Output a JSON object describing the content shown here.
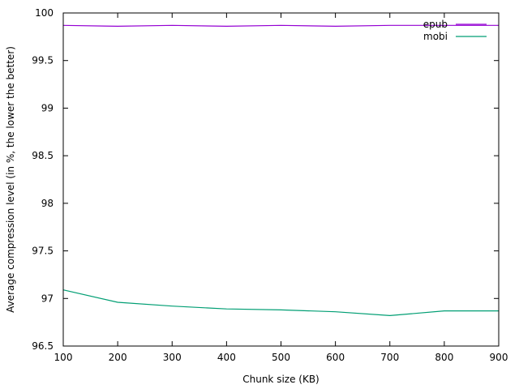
{
  "chart_data": {
    "type": "line",
    "title": "",
    "xlabel": "Chunk size (KB)",
    "ylabel": "Average compression level (in %, the lower the better)",
    "xlim": [
      100,
      900
    ],
    "ylim": [
      96.5,
      100
    ],
    "x_ticks": [
      100,
      200,
      300,
      400,
      500,
      600,
      700,
      800,
      900
    ],
    "y_ticks": [
      "96.5",
      "97",
      "97.5",
      "98",
      "98.5",
      "99",
      "99.5",
      "100"
    ],
    "grid": false,
    "legend": "top-right",
    "x": [
      100,
      200,
      300,
      400,
      500,
      600,
      700,
      800,
      900
    ],
    "series": [
      {
        "name": "epub",
        "color": "#9400d3",
        "values": [
          99.87,
          99.86,
          99.87,
          99.86,
          99.87,
          99.86,
          99.87,
          99.87,
          99.87
        ]
      },
      {
        "name": "mobi",
        "color": "#009e73",
        "values": [
          97.09,
          96.96,
          96.92,
          96.89,
          96.88,
          96.86,
          96.82,
          96.87,
          96.87
        ]
      }
    ]
  }
}
